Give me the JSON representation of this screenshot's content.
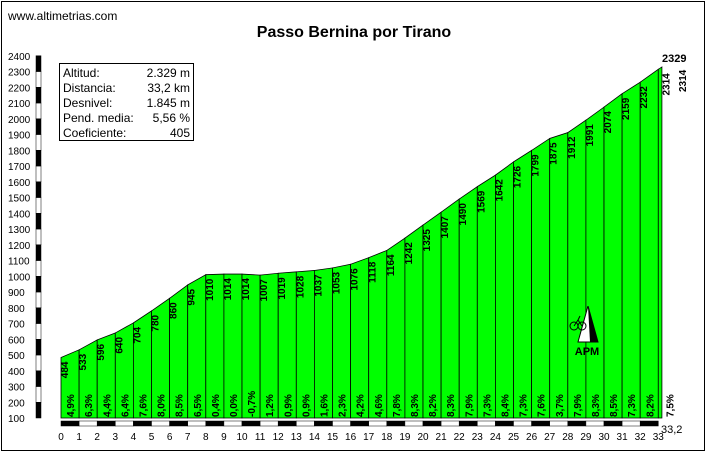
{
  "site": "www.altimetrias.com",
  "chart_data": {
    "type": "area",
    "title": "Passo Bernina por Tirano",
    "x": [
      0,
      1,
      2,
      3,
      4,
      5,
      6,
      7,
      8,
      9,
      10,
      11,
      12,
      13,
      14,
      15,
      16,
      17,
      18,
      19,
      20,
      21,
      22,
      23,
      24,
      25,
      26,
      27,
      28,
      29,
      30,
      31,
      32,
      33,
      33.2
    ],
    "altitudes": [
      484,
      533,
      596,
      640,
      704,
      780,
      860,
      945,
      1010,
      1014,
      1014,
      1007,
      1019,
      1028,
      1037,
      1053,
      1076,
      1118,
      1164,
      1242,
      1325,
      1407,
      1490,
      1569,
      1642,
      1726,
      1799,
      1875,
      1912,
      1991,
      2074,
      2159,
      2232,
      2314,
      2329
    ],
    "altitude_labels": [
      "484",
      "533",
      "596",
      "640",
      "704",
      "780",
      "860",
      "945",
      "1010",
      "1014",
      "1014",
      "1007",
      "1019",
      "1028",
      "1037",
      "1053",
      "1076",
      "1118",
      "1164",
      "1242",
      "1325",
      "1407",
      "1490",
      "1569",
      "1642",
      "1726",
      "1799",
      "1875",
      "1912",
      "1991",
      "2074",
      "2159",
      "2232",
      "2314"
    ],
    "gradient_labels": [
      "4,9%",
      "6,3%",
      "4,4%",
      "6,4%",
      "7,6%",
      "8,0%",
      "8,5%",
      "6,5%",
      "0,4%",
      "0,0%",
      "-0,7%",
      "1,2%",
      "0,9%",
      "0,9%",
      "1,6%",
      "2,3%",
      "4,2%",
      "4,6%",
      "7,8%",
      "8,3%",
      "8,2%",
      "8,3%",
      "7,9%",
      "7,3%",
      "8,4%",
      "7,3%",
      "7,6%",
      "3,7%",
      "7,9%",
      "8,3%",
      "8,5%",
      "7,3%",
      "8,2%",
      "7,5%"
    ],
    "x_ticks": [
      "0",
      "1",
      "2",
      "3",
      "4",
      "5",
      "6",
      "7",
      "8",
      "9",
      "10",
      "11",
      "12",
      "13",
      "14",
      "15",
      "16",
      "17",
      "18",
      "19",
      "20",
      "21",
      "22",
      "23",
      "24",
      "25",
      "26",
      "27",
      "28",
      "29",
      "30",
      "31",
      "32",
      "33"
    ],
    "x_end_label": "33,2",
    "summit_label": "2329",
    "y_ticks": [
      100,
      200,
      300,
      400,
      500,
      600,
      700,
      800,
      900,
      1000,
      1100,
      1200,
      1300,
      1400,
      1500,
      1600,
      1700,
      1800,
      1900,
      2000,
      2100,
      2200,
      2300,
      2400
    ],
    "ylim": [
      100,
      2400
    ],
    "xlim": [
      0,
      33.2
    ],
    "fill_color": "#00ff00",
    "xlabel": "",
    "ylabel": ""
  },
  "stats": [
    {
      "label": "Altitud:",
      "value": "2.329 m"
    },
    {
      "label": "Distancia:",
      "value": "33,2 km"
    },
    {
      "label": "Desnivel:",
      "value": "1.845 m"
    },
    {
      "label": "Pend. media:",
      "value": "5,56 %"
    },
    {
      "label": "Coeficiente:",
      "value": "405"
    }
  ],
  "logo": {
    "text": "APM",
    "icon": "mountain-cyclist-icon"
  }
}
